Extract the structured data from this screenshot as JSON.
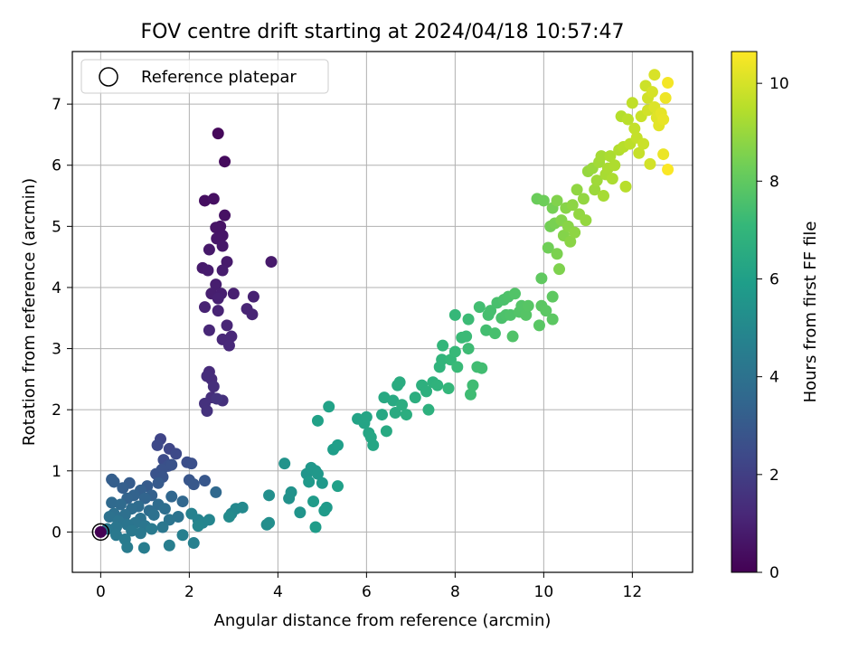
{
  "chart_data": {
    "type": "scatter",
    "title": "FOV centre drift starting at 2024/04/18 10:57:47",
    "xlabel": "Angular distance from reference (arcmin)",
    "ylabel": "Rotation from reference (arcmin)",
    "xlim": [
      -0.64,
      13.36
    ],
    "ylim": [
      -0.66,
      7.86
    ],
    "xticks": [
      0,
      2,
      4,
      6,
      8,
      10,
      12
    ],
    "yticks": [
      0,
      1,
      2,
      3,
      4,
      5,
      6,
      7
    ],
    "grid": true,
    "legend": {
      "position": "top-left",
      "entries": [
        "Reference platepar"
      ]
    },
    "reference_point": {
      "x": 0,
      "y": 0
    },
    "colorbar": {
      "label": "Hours from first FF file",
      "min": 0,
      "max": 10.65,
      "ticks": [
        0,
        2,
        4,
        6,
        8,
        10
      ],
      "colormap": "viridis"
    },
    "colors": {
      "viridis": [
        "#440154",
        "#482878",
        "#3e4989",
        "#31688e",
        "#26828e",
        "#1f9e89",
        "#35b779",
        "#6ece58",
        "#b5de2b",
        "#fde725"
      ]
    },
    "points": [
      {
        "x": 2.65,
        "y": 6.52,
        "t": 0.2
      },
      {
        "x": 2.8,
        "y": 6.06,
        "t": 0.3
      },
      {
        "x": 2.35,
        "y": 5.42,
        "t": 0.4
      },
      {
        "x": 2.55,
        "y": 5.45,
        "t": 0.45
      },
      {
        "x": 2.8,
        "y": 5.18,
        "t": 0.5
      },
      {
        "x": 2.7,
        "y": 5.0,
        "t": 0.55
      },
      {
        "x": 2.6,
        "y": 4.98,
        "t": 0.6
      },
      {
        "x": 2.75,
        "y": 4.85,
        "t": 0.62
      },
      {
        "x": 2.62,
        "y": 4.8,
        "t": 0.65
      },
      {
        "x": 2.75,
        "y": 4.68,
        "t": 0.7
      },
      {
        "x": 2.45,
        "y": 4.62,
        "t": 0.72
      },
      {
        "x": 3.85,
        "y": 4.42,
        "t": 0.75
      },
      {
        "x": 2.85,
        "y": 4.42,
        "t": 0.78
      },
      {
        "x": 2.3,
        "y": 4.32,
        "t": 0.8
      },
      {
        "x": 2.42,
        "y": 4.28,
        "t": 0.82
      },
      {
        "x": 2.75,
        "y": 4.28,
        "t": 0.85
      },
      {
        "x": 2.6,
        "y": 4.05,
        "t": 0.88
      },
      {
        "x": 2.5,
        "y": 3.9,
        "t": 0.9
      },
      {
        "x": 2.72,
        "y": 3.9,
        "t": 0.92
      },
      {
        "x": 3.0,
        "y": 3.9,
        "t": 0.95
      },
      {
        "x": 2.65,
        "y": 3.82,
        "t": 0.98
      },
      {
        "x": 3.45,
        "y": 3.85,
        "t": 1.0
      },
      {
        "x": 2.35,
        "y": 3.68,
        "t": 1.02
      },
      {
        "x": 2.65,
        "y": 3.62,
        "t": 1.05
      },
      {
        "x": 3.3,
        "y": 3.65,
        "t": 1.08
      },
      {
        "x": 3.42,
        "y": 3.56,
        "t": 1.1
      },
      {
        "x": 2.85,
        "y": 3.38,
        "t": 1.12
      },
      {
        "x": 2.45,
        "y": 3.3,
        "t": 1.15
      },
      {
        "x": 2.95,
        "y": 3.2,
        "t": 1.18
      },
      {
        "x": 2.75,
        "y": 3.15,
        "t": 1.2
      },
      {
        "x": 2.9,
        "y": 3.05,
        "t": 1.22
      },
      {
        "x": 2.45,
        "y": 2.62,
        "t": 1.3
      },
      {
        "x": 2.5,
        "y": 2.5,
        "t": 1.35
      },
      {
        "x": 2.4,
        "y": 2.55,
        "t": 1.38
      },
      {
        "x": 2.55,
        "y": 2.38,
        "t": 1.42
      },
      {
        "x": 2.5,
        "y": 2.2,
        "t": 1.45
      },
      {
        "x": 2.75,
        "y": 2.15,
        "t": 1.48
      },
      {
        "x": 2.35,
        "y": 2.1,
        "t": 1.5
      },
      {
        "x": 2.4,
        "y": 1.98,
        "t": 1.55
      },
      {
        "x": 2.62,
        "y": 2.18,
        "t": 1.6
      },
      {
        "x": 1.35,
        "y": 1.52,
        "t": 2.2
      },
      {
        "x": 1.55,
        "y": 1.36,
        "t": 2.3
      },
      {
        "x": 1.28,
        "y": 1.42,
        "t": 2.35
      },
      {
        "x": 1.7,
        "y": 1.28,
        "t": 2.4
      },
      {
        "x": 1.42,
        "y": 1.18,
        "t": 2.5
      },
      {
        "x": 1.95,
        "y": 1.14,
        "t": 2.55
      },
      {
        "x": 2.05,
        "y": 1.12,
        "t": 2.6
      },
      {
        "x": 1.52,
        "y": 1.08,
        "t": 2.65
      },
      {
        "x": 1.38,
        "y": 1.02,
        "t": 2.7
      },
      {
        "x": 1.6,
        "y": 1.1,
        "t": 2.72
      },
      {
        "x": 1.25,
        "y": 0.95,
        "t": 2.75
      },
      {
        "x": 1.4,
        "y": 0.9,
        "t": 2.8
      },
      {
        "x": 2.0,
        "y": 0.85,
        "t": 2.85
      },
      {
        "x": 2.35,
        "y": 0.84,
        "t": 2.9
      },
      {
        "x": 2.1,
        "y": 0.78,
        "t": 2.95
      },
      {
        "x": 1.3,
        "y": 0.8,
        "t": 3.0
      },
      {
        "x": 1.05,
        "y": 0.75,
        "t": 3.05
      },
      {
        "x": 0.65,
        "y": 0.8,
        "t": 3.1
      },
      {
        "x": 0.25,
        "y": 0.86,
        "t": 3.15
      },
      {
        "x": 0.3,
        "y": 0.82,
        "t": 3.18
      },
      {
        "x": 0.5,
        "y": 0.72,
        "t": 3.2
      },
      {
        "x": 0.9,
        "y": 0.68,
        "t": 3.25
      },
      {
        "x": 1.15,
        "y": 0.6,
        "t": 3.3
      },
      {
        "x": 0.75,
        "y": 0.6,
        "t": 3.35
      },
      {
        "x": 0.6,
        "y": 0.55,
        "t": 3.4
      },
      {
        "x": 1.0,
        "y": 0.55,
        "t": 3.45
      },
      {
        "x": 1.6,
        "y": 0.58,
        "t": 3.5
      },
      {
        "x": 1.85,
        "y": 0.5,
        "t": 3.55
      },
      {
        "x": 2.6,
        "y": 0.65,
        "t": 3.6
      },
      {
        "x": 0.25,
        "y": 0.48,
        "t": 3.65
      },
      {
        "x": 0.45,
        "y": 0.45,
        "t": 3.7
      },
      {
        "x": 0.85,
        "y": 0.42,
        "t": 3.72
      },
      {
        "x": 1.3,
        "y": 0.45,
        "t": 3.75
      },
      {
        "x": 0.7,
        "y": 0.38,
        "t": 3.78
      },
      {
        "x": 1.1,
        "y": 0.35,
        "t": 3.8
      },
      {
        "x": 1.45,
        "y": 0.38,
        "t": 3.85
      },
      {
        "x": 0.3,
        "y": 0.3,
        "t": 3.9
      },
      {
        "x": 0.55,
        "y": 0.28,
        "t": 3.92
      },
      {
        "x": 1.2,
        "y": 0.28,
        "t": 3.95
      },
      {
        "x": 0.2,
        "y": 0.25,
        "t": 4.0
      },
      {
        "x": 0.9,
        "y": 0.22,
        "t": 4.02
      },
      {
        "x": 1.75,
        "y": 0.25,
        "t": 4.05
      },
      {
        "x": 1.55,
        "y": 0.2,
        "t": 4.08
      },
      {
        "x": 0.4,
        "y": 0.18,
        "t": 4.1
      },
      {
        "x": 0.78,
        "y": 0.15,
        "t": 4.12
      },
      {
        "x": 0.6,
        "y": 0.12,
        "t": 4.15
      },
      {
        "x": 1.0,
        "y": 0.1,
        "t": 4.18
      },
      {
        "x": 0.35,
        "y": 0.08,
        "t": 4.2
      },
      {
        "x": 1.4,
        "y": 0.08,
        "t": 4.22
      },
      {
        "x": 0.15,
        "y": 0.05,
        "t": 4.25
      },
      {
        "x": 0.7,
        "y": 0.02,
        "t": 4.28
      },
      {
        "x": 0.9,
        "y": -0.02,
        "t": 4.3
      },
      {
        "x": 0.35,
        "y": -0.05,
        "t": 4.32
      },
      {
        "x": 1.15,
        "y": 0.05,
        "t": 4.35
      },
      {
        "x": 0.55,
        "y": -0.12,
        "t": 4.4
      },
      {
        "x": 0.6,
        "y": -0.25,
        "t": 4.45
      },
      {
        "x": 0.98,
        "y": -0.26,
        "t": 4.5
      },
      {
        "x": 1.55,
        "y": -0.22,
        "t": 4.55
      },
      {
        "x": 1.85,
        "y": -0.05,
        "t": 4.6
      },
      {
        "x": 2.1,
        "y": -0.18,
        "t": 4.65
      },
      {
        "x": 2.05,
        "y": 0.3,
        "t": 4.7
      },
      {
        "x": 2.2,
        "y": 0.2,
        "t": 4.75
      },
      {
        "x": 2.3,
        "y": 0.15,
        "t": 4.8
      },
      {
        "x": 2.45,
        "y": 0.2,
        "t": 4.85
      },
      {
        "x": 2.2,
        "y": 0.1,
        "t": 4.9
      },
      {
        "x": 2.95,
        "y": 0.3,
        "t": 4.95
      },
      {
        "x": 3.05,
        "y": 0.38,
        "t": 5.0
      },
      {
        "x": 3.2,
        "y": 0.4,
        "t": 5.05
      },
      {
        "x": 2.9,
        "y": 0.25,
        "t": 5.1
      },
      {
        "x": 3.75,
        "y": 0.12,
        "t": 5.2
      },
      {
        "x": 3.8,
        "y": 0.15,
        "t": 5.25
      },
      {
        "x": 3.8,
        "y": 0.6,
        "t": 5.3
      },
      {
        "x": 4.25,
        "y": 0.55,
        "t": 5.35
      },
      {
        "x": 4.3,
        "y": 0.65,
        "t": 5.4
      },
      {
        "x": 4.15,
        "y": 1.12,
        "t": 5.45
      },
      {
        "x": 4.5,
        "y": 0.32,
        "t": 5.5
      },
      {
        "x": 4.65,
        "y": 0.95,
        "t": 5.55
      },
      {
        "x": 4.75,
        "y": 1.05,
        "t": 5.6
      },
      {
        "x": 4.85,
        "y": 1.0,
        "t": 5.62
      },
      {
        "x": 4.9,
        "y": 0.95,
        "t": 5.65
      },
      {
        "x": 4.7,
        "y": 0.82,
        "t": 5.7
      },
      {
        "x": 5.0,
        "y": 0.8,
        "t": 5.72
      },
      {
        "x": 5.1,
        "y": 0.4,
        "t": 5.75
      },
      {
        "x": 5.05,
        "y": 0.35,
        "t": 5.78
      },
      {
        "x": 4.8,
        "y": 0.5,
        "t": 5.8
      },
      {
        "x": 4.85,
        "y": 0.08,
        "t": 5.85
      },
      {
        "x": 5.25,
        "y": 1.35,
        "t": 5.9
      },
      {
        "x": 5.35,
        "y": 1.42,
        "t": 5.95
      },
      {
        "x": 5.35,
        "y": 0.75,
        "t": 6.0
      },
      {
        "x": 4.9,
        "y": 1.82,
        "t": 6.05
      },
      {
        "x": 5.15,
        "y": 2.05,
        "t": 6.1
      },
      {
        "x": 5.8,
        "y": 1.85,
        "t": 6.15
      },
      {
        "x": 5.95,
        "y": 1.78,
        "t": 6.2
      },
      {
        "x": 6.0,
        "y": 1.88,
        "t": 6.22
      },
      {
        "x": 6.05,
        "y": 1.62,
        "t": 6.25
      },
      {
        "x": 6.1,
        "y": 1.55,
        "t": 6.28
      },
      {
        "x": 6.15,
        "y": 1.42,
        "t": 6.3
      },
      {
        "x": 6.35,
        "y": 1.92,
        "t": 6.35
      },
      {
        "x": 6.4,
        "y": 2.2,
        "t": 6.4
      },
      {
        "x": 6.45,
        "y": 1.65,
        "t": 6.42
      },
      {
        "x": 6.6,
        "y": 2.15,
        "t": 6.45
      },
      {
        "x": 6.65,
        "y": 1.95,
        "t": 6.5
      },
      {
        "x": 6.7,
        "y": 2.4,
        "t": 6.52
      },
      {
        "x": 6.75,
        "y": 2.45,
        "t": 6.55
      },
      {
        "x": 6.8,
        "y": 2.08,
        "t": 6.6
      },
      {
        "x": 6.9,
        "y": 1.92,
        "t": 6.62
      },
      {
        "x": 7.1,
        "y": 2.2,
        "t": 6.65
      },
      {
        "x": 7.25,
        "y": 2.4,
        "t": 6.7
      },
      {
        "x": 7.35,
        "y": 2.3,
        "t": 6.72
      },
      {
        "x": 7.4,
        "y": 2.0,
        "t": 6.75
      },
      {
        "x": 7.5,
        "y": 2.45,
        "t": 6.8
      },
      {
        "x": 7.6,
        "y": 2.4,
        "t": 6.85
      },
      {
        "x": 7.65,
        "y": 2.7,
        "t": 6.9
      },
      {
        "x": 7.7,
        "y": 2.82,
        "t": 6.95
      },
      {
        "x": 7.72,
        "y": 3.05,
        "t": 7.0
      },
      {
        "x": 7.85,
        "y": 2.35,
        "t": 7.05
      },
      {
        "x": 7.9,
        "y": 2.82,
        "t": 7.1
      },
      {
        "x": 8.0,
        "y": 3.55,
        "t": 7.12
      },
      {
        "x": 8.0,
        "y": 2.95,
        "t": 7.15
      },
      {
        "x": 8.05,
        "y": 2.7,
        "t": 7.18
      },
      {
        "x": 8.15,
        "y": 3.18,
        "t": 7.2
      },
      {
        "x": 8.25,
        "y": 3.2,
        "t": 7.22
      },
      {
        "x": 8.3,
        "y": 3.48,
        "t": 7.25
      },
      {
        "x": 8.3,
        "y": 3.0,
        "t": 7.28
      },
      {
        "x": 8.35,
        "y": 2.25,
        "t": 7.3
      },
      {
        "x": 8.4,
        "y": 2.4,
        "t": 7.32
      },
      {
        "x": 8.5,
        "y": 2.7,
        "t": 7.35
      },
      {
        "x": 8.6,
        "y": 2.68,
        "t": 7.38
      },
      {
        "x": 8.55,
        "y": 3.68,
        "t": 7.4
      },
      {
        "x": 8.7,
        "y": 3.3,
        "t": 7.42
      },
      {
        "x": 8.75,
        "y": 3.55,
        "t": 7.45
      },
      {
        "x": 8.8,
        "y": 3.62,
        "t": 7.48
      },
      {
        "x": 8.9,
        "y": 3.25,
        "t": 7.5
      },
      {
        "x": 8.95,
        "y": 3.75,
        "t": 7.52
      },
      {
        "x": 9.05,
        "y": 3.5,
        "t": 7.55
      },
      {
        "x": 9.1,
        "y": 3.8,
        "t": 7.58
      },
      {
        "x": 9.15,
        "y": 3.55,
        "t": 7.6
      },
      {
        "x": 9.2,
        "y": 3.85,
        "t": 7.62
      },
      {
        "x": 9.25,
        "y": 3.55,
        "t": 7.65
      },
      {
        "x": 9.3,
        "y": 3.2,
        "t": 7.68
      },
      {
        "x": 9.35,
        "y": 3.9,
        "t": 7.7
      },
      {
        "x": 9.45,
        "y": 3.6,
        "t": 7.72
      },
      {
        "x": 9.5,
        "y": 3.7,
        "t": 7.75
      },
      {
        "x": 9.6,
        "y": 3.55,
        "t": 7.78
      },
      {
        "x": 9.65,
        "y": 3.7,
        "t": 7.8
      },
      {
        "x": 9.9,
        "y": 3.38,
        "t": 7.85
      },
      {
        "x": 9.95,
        "y": 3.7,
        "t": 7.88
      },
      {
        "x": 10.05,
        "y": 3.62,
        "t": 7.9
      },
      {
        "x": 10.2,
        "y": 3.48,
        "t": 7.92
      },
      {
        "x": 10.2,
        "y": 3.85,
        "t": 7.95
      },
      {
        "x": 9.95,
        "y": 4.15,
        "t": 8.0
      },
      {
        "x": 9.85,
        "y": 5.45,
        "t": 8.2
      },
      {
        "x": 10.0,
        "y": 5.42,
        "t": 8.25
      },
      {
        "x": 10.1,
        "y": 4.65,
        "t": 8.3
      },
      {
        "x": 10.15,
        "y": 5.0,
        "t": 8.35
      },
      {
        "x": 10.2,
        "y": 5.3,
        "t": 8.4
      },
      {
        "x": 10.25,
        "y": 5.05,
        "t": 8.45
      },
      {
        "x": 10.3,
        "y": 4.55,
        "t": 8.5
      },
      {
        "x": 10.35,
        "y": 4.3,
        "t": 8.55
      },
      {
        "x": 10.3,
        "y": 5.42,
        "t": 8.6
      },
      {
        "x": 10.4,
        "y": 5.1,
        "t": 8.62
      },
      {
        "x": 10.45,
        "y": 4.85,
        "t": 8.65
      },
      {
        "x": 10.5,
        "y": 5.3,
        "t": 8.7
      },
      {
        "x": 10.55,
        "y": 5.0,
        "t": 8.72
      },
      {
        "x": 10.6,
        "y": 4.75,
        "t": 8.75
      },
      {
        "x": 10.65,
        "y": 5.35,
        "t": 8.8
      },
      {
        "x": 10.7,
        "y": 4.9,
        "t": 8.82
      },
      {
        "x": 10.75,
        "y": 5.6,
        "t": 8.85
      },
      {
        "x": 10.8,
        "y": 5.2,
        "t": 8.88
      },
      {
        "x": 10.9,
        "y": 5.45,
        "t": 8.9
      },
      {
        "x": 10.95,
        "y": 5.1,
        "t": 8.92
      },
      {
        "x": 11.0,
        "y": 5.9,
        "t": 8.95
      },
      {
        "x": 11.1,
        "y": 5.95,
        "t": 9.0
      },
      {
        "x": 11.15,
        "y": 5.6,
        "t": 9.05
      },
      {
        "x": 11.2,
        "y": 5.75,
        "t": 9.1
      },
      {
        "x": 11.25,
        "y": 6.05,
        "t": 9.15
      },
      {
        "x": 11.3,
        "y": 6.15,
        "t": 9.2
      },
      {
        "x": 11.35,
        "y": 5.5,
        "t": 9.22
      },
      {
        "x": 11.4,
        "y": 5.85,
        "t": 9.25
      },
      {
        "x": 11.45,
        "y": 5.95,
        "t": 9.28
      },
      {
        "x": 11.5,
        "y": 6.15,
        "t": 9.3
      },
      {
        "x": 11.55,
        "y": 5.78,
        "t": 9.32
      },
      {
        "x": 11.6,
        "y": 6.0,
        "t": 9.35
      },
      {
        "x": 11.7,
        "y": 6.25,
        "t": 9.4
      },
      {
        "x": 11.75,
        "y": 6.8,
        "t": 9.45
      },
      {
        "x": 11.8,
        "y": 6.3,
        "t": 9.5
      },
      {
        "x": 11.85,
        "y": 5.65,
        "t": 9.52
      },
      {
        "x": 11.9,
        "y": 6.75,
        "t": 9.55
      },
      {
        "x": 11.95,
        "y": 6.35,
        "t": 9.6
      },
      {
        "x": 12.0,
        "y": 7.02,
        "t": 9.65
      },
      {
        "x": 12.05,
        "y": 6.6,
        "t": 9.7
      },
      {
        "x": 12.1,
        "y": 6.45,
        "t": 9.72
      },
      {
        "x": 12.15,
        "y": 6.2,
        "t": 9.75
      },
      {
        "x": 12.2,
        "y": 6.8,
        "t": 9.8
      },
      {
        "x": 12.25,
        "y": 6.35,
        "t": 9.82
      },
      {
        "x": 12.3,
        "y": 7.3,
        "t": 9.85
      },
      {
        "x": 12.35,
        "y": 7.1,
        "t": 9.9
      },
      {
        "x": 12.35,
        "y": 6.9,
        "t": 9.92
      },
      {
        "x": 12.4,
        "y": 6.02,
        "t": 9.95
      },
      {
        "x": 12.45,
        "y": 7.2,
        "t": 10.0
      },
      {
        "x": 12.5,
        "y": 7.48,
        "t": 10.05
      },
      {
        "x": 12.5,
        "y": 6.95,
        "t": 10.1
      },
      {
        "x": 12.55,
        "y": 6.78,
        "t": 10.15
      },
      {
        "x": 12.6,
        "y": 6.65,
        "t": 10.2
      },
      {
        "x": 12.65,
        "y": 6.85,
        "t": 10.25
      },
      {
        "x": 12.7,
        "y": 6.75,
        "t": 10.3
      },
      {
        "x": 12.7,
        "y": 6.18,
        "t": 10.35
      },
      {
        "x": 12.75,
        "y": 7.1,
        "t": 10.4
      },
      {
        "x": 12.8,
        "y": 7.35,
        "t": 10.5
      },
      {
        "x": 12.8,
        "y": 5.93,
        "t": 10.6
      }
    ]
  }
}
